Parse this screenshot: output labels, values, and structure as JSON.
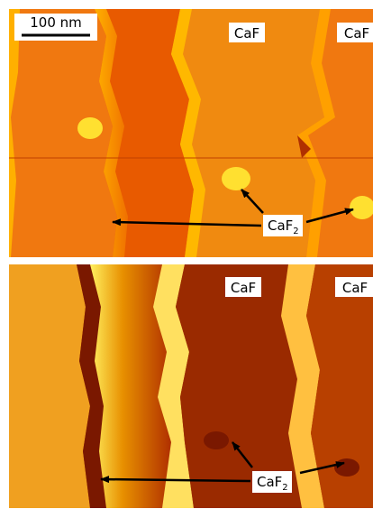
{
  "scale_bar": "100 nm",
  "panels": [
    {
      "labels": [
        "CaF",
        "CaF"
      ],
      "compound": {
        "base": "CaF",
        "sub": "2"
      }
    },
    {
      "labels": [
        "CaF",
        "CaF"
      ],
      "compound": {
        "base": "CaF",
        "sub": "2"
      }
    }
  ]
}
